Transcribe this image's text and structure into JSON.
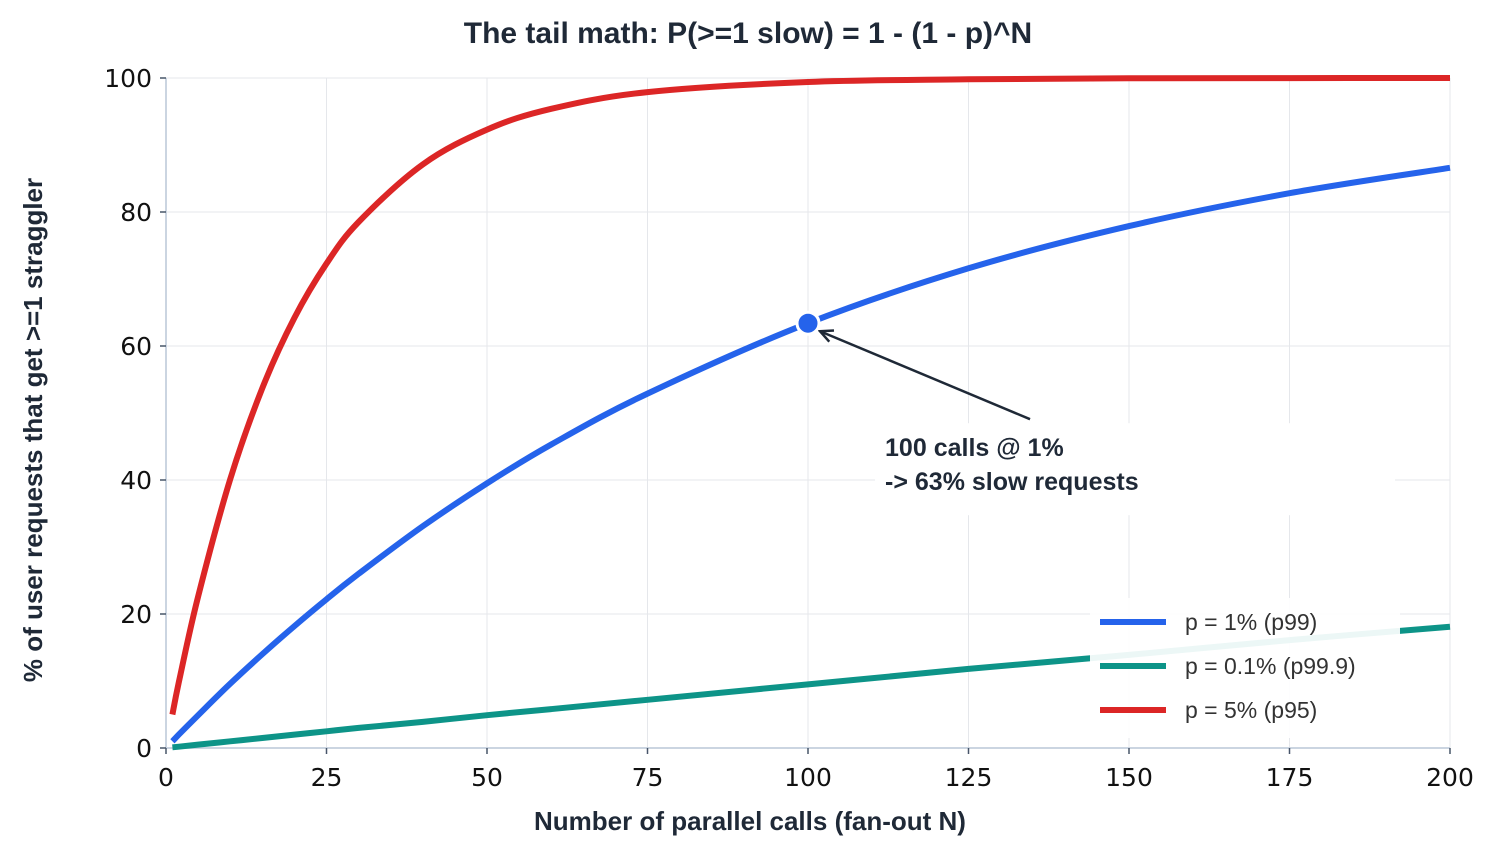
{
  "chart_data": {
    "type": "line",
    "title": "The tail math: P(>=1 slow) = 1 - (1 - p)^N",
    "xlabel": "Number of parallel calls (fan-out N)",
    "ylabel": "% of user requests that get >=1 straggler",
    "xlim": [
      0,
      200
    ],
    "ylim": [
      0,
      100
    ],
    "x_ticks": [
      0,
      25,
      50,
      75,
      100,
      125,
      150,
      175,
      200
    ],
    "y_ticks": [
      0,
      20,
      40,
      60,
      80,
      100
    ],
    "x_tick_labels": [
      "0",
      "25",
      "50",
      "75",
      "100",
      "125",
      "150",
      "175",
      "200"
    ],
    "y_tick_labels": [
      "0",
      "20",
      "40",
      "60",
      "80",
      "100"
    ],
    "grid": true,
    "legend_position": "lower-right",
    "x": [
      1,
      2,
      5,
      10,
      15,
      20,
      25,
      30,
      40,
      50,
      60,
      75,
      100,
      125,
      150,
      175,
      200
    ],
    "series": [
      {
        "name": "p = 1% (p99)",
        "color": "#2563eb",
        "values": [
          1.0,
          2.0,
          4.9,
          9.6,
          14.0,
          18.2,
          22.2,
          26.0,
          33.1,
          39.5,
          45.3,
          52.9,
          63.4,
          71.6,
          77.9,
          82.8,
          86.6
        ]
      },
      {
        "name": "p = 0.1% (p99.9)",
        "color": "#0d9488",
        "values": [
          0.1,
          0.2,
          0.5,
          1.0,
          1.5,
          2.0,
          2.5,
          3.0,
          3.9,
          4.9,
          5.8,
          7.2,
          9.5,
          11.8,
          13.9,
          16.1,
          18.1
        ]
      },
      {
        "name": "p = 5% (p95)",
        "color": "#dc2626",
        "values": [
          5.0,
          9.8,
          22.6,
          40.1,
          53.7,
          64.2,
          72.3,
          78.5,
          87.1,
          92.3,
          95.4,
          97.9,
          99.4,
          99.8,
          99.95,
          99.99,
          100.0
        ]
      }
    ],
    "annotation": {
      "point": {
        "x": 100,
        "y": 63.4,
        "color": "#2563eb"
      },
      "text_line1": "100 calls @ 1%",
      "text_line2": "-> 63% slow requests",
      "text_anchor_data": {
        "x": 112,
        "y": 44
      }
    }
  }
}
